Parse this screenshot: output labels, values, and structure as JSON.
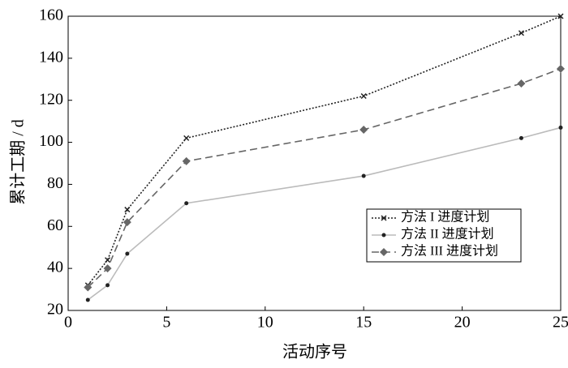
{
  "chart_data": {
    "type": "line",
    "xlabel": "活动序号",
    "ylabel": "累计工期 / d",
    "x": [
      1,
      2,
      3,
      6,
      15,
      23,
      25
    ],
    "series": [
      {
        "name": "方法 I 进度计划",
        "color": "#222222",
        "dash": "2,2",
        "marker": "x",
        "values": [
          32,
          44,
          68,
          102,
          122,
          152,
          160
        ]
      },
      {
        "name": "方法 II 进度计划",
        "color": "#bbbbbb",
        "dash": "none",
        "marker": "dot",
        "values": [
          25,
          32,
          47,
          71,
          84,
          102,
          107
        ]
      },
      {
        "name": "方法 III 进度计划",
        "color": "#666666",
        "dash": "9,5",
        "marker": "diamond",
        "values": [
          31,
          40,
          62,
          91,
          106,
          128,
          135
        ]
      }
    ],
    "xlim": [
      0,
      25
    ],
    "xticks": [
      0,
      5,
      10,
      15,
      20,
      25
    ],
    "ylim": [
      20,
      160
    ],
    "yticks": [
      20,
      40,
      60,
      80,
      100,
      120,
      140,
      160
    ],
    "legend": "right"
  }
}
